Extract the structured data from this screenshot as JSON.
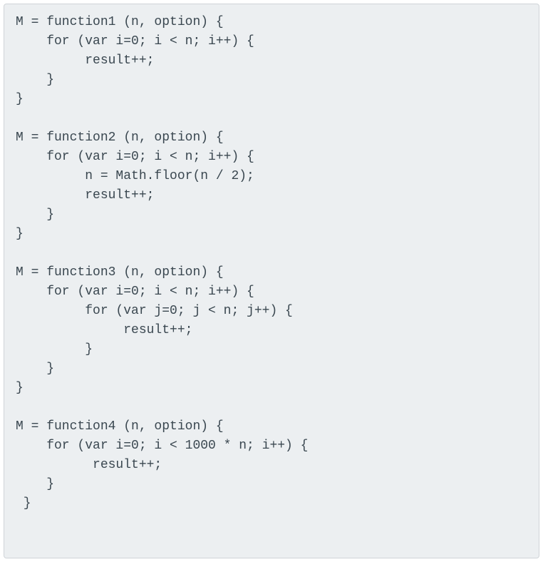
{
  "code": {
    "background_color": "#eceff1",
    "border_color": "#d0d4d8",
    "text_color": "#3a4750",
    "font_family": "Consolas, Monaco, Courier New, monospace",
    "font_size": 18,
    "line_height": 1.5,
    "border_radius": 4,
    "lines": [
      "M = function1 (n, option) {",
      "    for (var i=0; i < n; i++) {",
      "         result++;",
      "    }",
      "}",
      "",
      "M = function2 (n, option) {",
      "    for (var i=0; i < n; i++) {",
      "         n = Math.floor(n / 2);",
      "         result++;",
      "    }",
      "}",
      "",
      "M = function3 (n, option) {",
      "    for (var i=0; i < n; i++) {",
      "         for (var j=0; j < n; j++) {",
      "              result++;",
      "         }",
      "    }",
      "}",
      "",
      "M = function4 (n, option) {",
      "    for (var i=0; i < 1000 * n; i++) {",
      "          result++;",
      "    }",
      " }"
    ]
  }
}
